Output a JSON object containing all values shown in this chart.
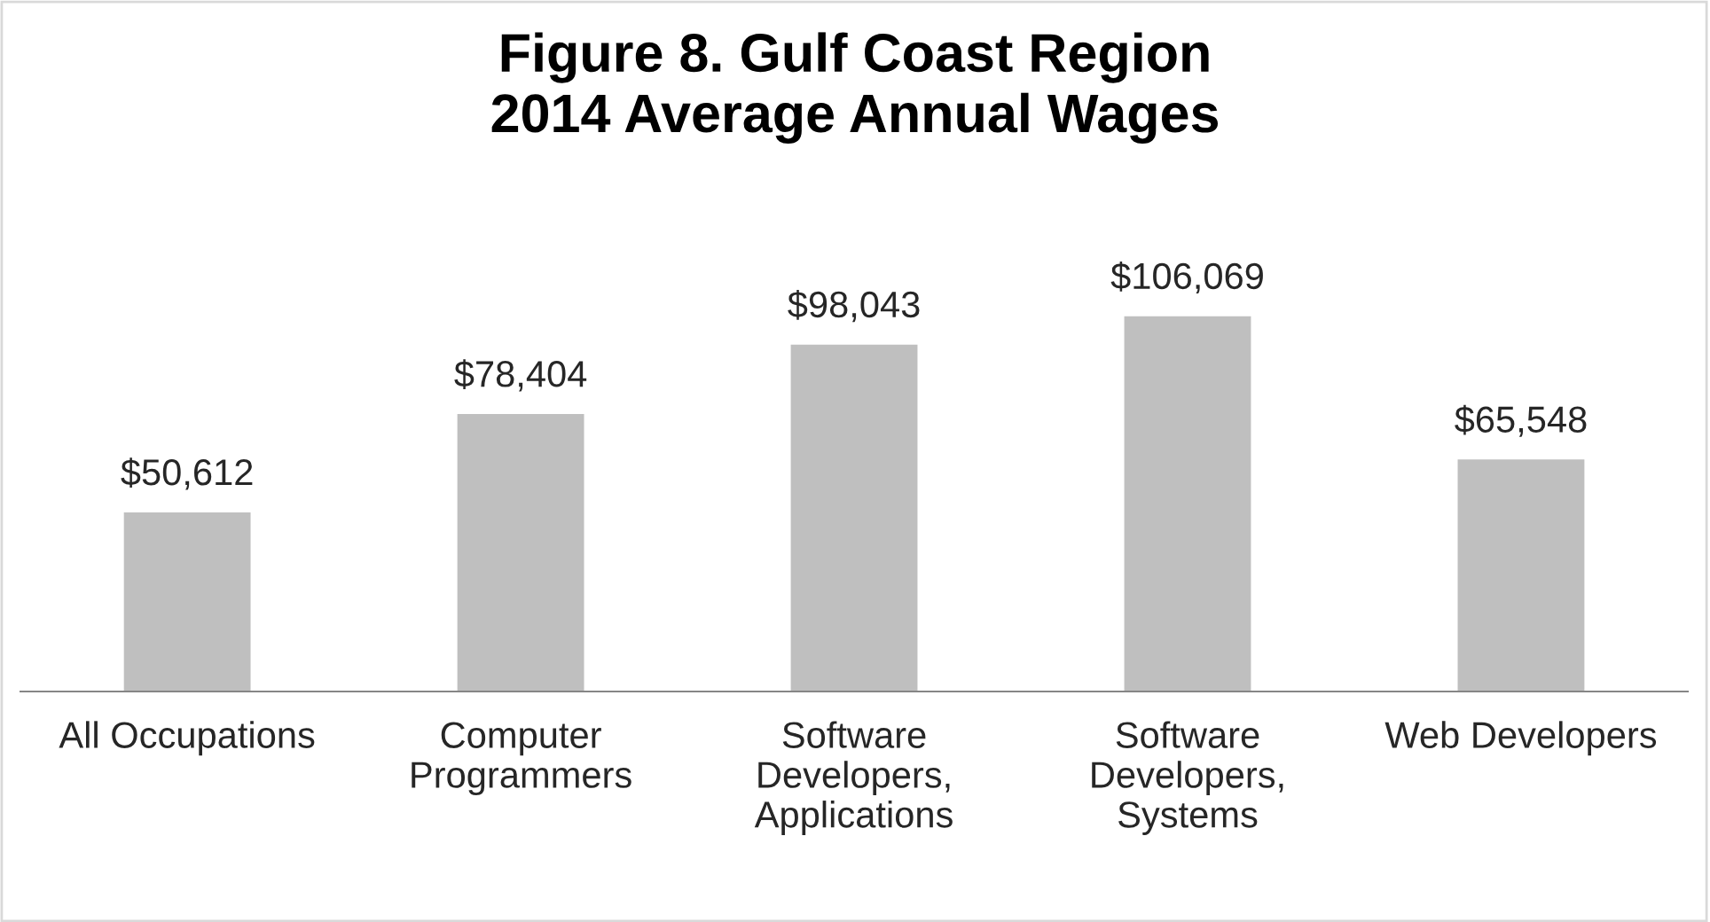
{
  "chart_data": {
    "type": "bar",
    "title": "Figure 8. Gulf Coast Region\n2014 Average Annual Wages",
    "categories": [
      "All Occupations",
      "Computer\nProgrammers",
      "Software\nDevelopers,\nApplications",
      "Software\nDevelopers,\nSystems",
      "Web Developers"
    ],
    "values": [
      50612,
      78404,
      98043,
      106069,
      65548
    ],
    "value_labels": [
      "$50,612",
      "$78,404",
      "$98,043",
      "$106,069",
      "$65,548"
    ],
    "color": "#bfbfbf",
    "grid": false,
    "legend": false
  }
}
